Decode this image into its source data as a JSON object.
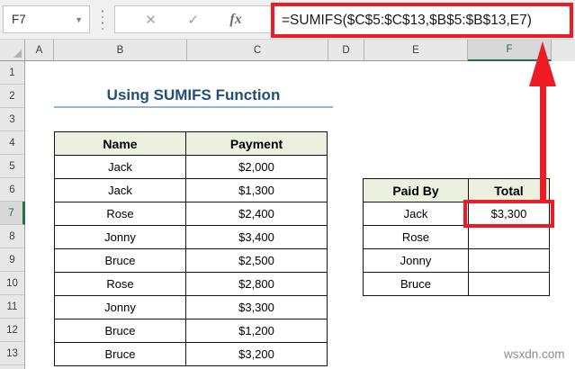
{
  "formula_bar": {
    "name_box": "F7",
    "cancel_icon": "✕",
    "enter_icon": "✓",
    "fx_icon": "fx",
    "formula": "=SUMIFS($C$5:$C$13,$B$5:$B$13,E7)"
  },
  "grid": {
    "columns": [
      "A",
      "B",
      "C",
      "D",
      "E",
      "F"
    ],
    "rows": [
      "1",
      "2",
      "3",
      "4",
      "5",
      "6",
      "7",
      "8",
      "9",
      "10",
      "11",
      "12",
      "13"
    ],
    "selected_column": "F",
    "selected_row": "7",
    "selected_cell": "F7"
  },
  "sheet": {
    "title": "Using SUMIFS Function",
    "left_table": {
      "headers": [
        "Name",
        "Payment"
      ],
      "rows": [
        [
          "Jack",
          "$2,000"
        ],
        [
          "Jack",
          "$1,300"
        ],
        [
          "Rose",
          "$2,400"
        ],
        [
          "Jonny",
          "$3,400"
        ],
        [
          "Bruce",
          "$2,500"
        ],
        [
          "Rose",
          "$2,800"
        ],
        [
          "Jonny",
          "$3,300"
        ],
        [
          "Bruce",
          "$1,200"
        ],
        [
          "Bruce",
          "$3,200"
        ]
      ]
    },
    "right_table": {
      "headers": [
        "Paid By",
        "Total"
      ],
      "rows": [
        [
          "Jack",
          "$3,300"
        ],
        [
          "Rose",
          ""
        ],
        [
          "Jonny",
          ""
        ],
        [
          "Bruce",
          ""
        ]
      ]
    }
  },
  "watermark": "wsxdn.com",
  "colors": {
    "annotation_red": "#ed1c24",
    "title_blue": "#1f4e79",
    "title_underline": "#95b3d7",
    "table_header_bg": "#ebf1de",
    "selection_green": "#217346"
  }
}
